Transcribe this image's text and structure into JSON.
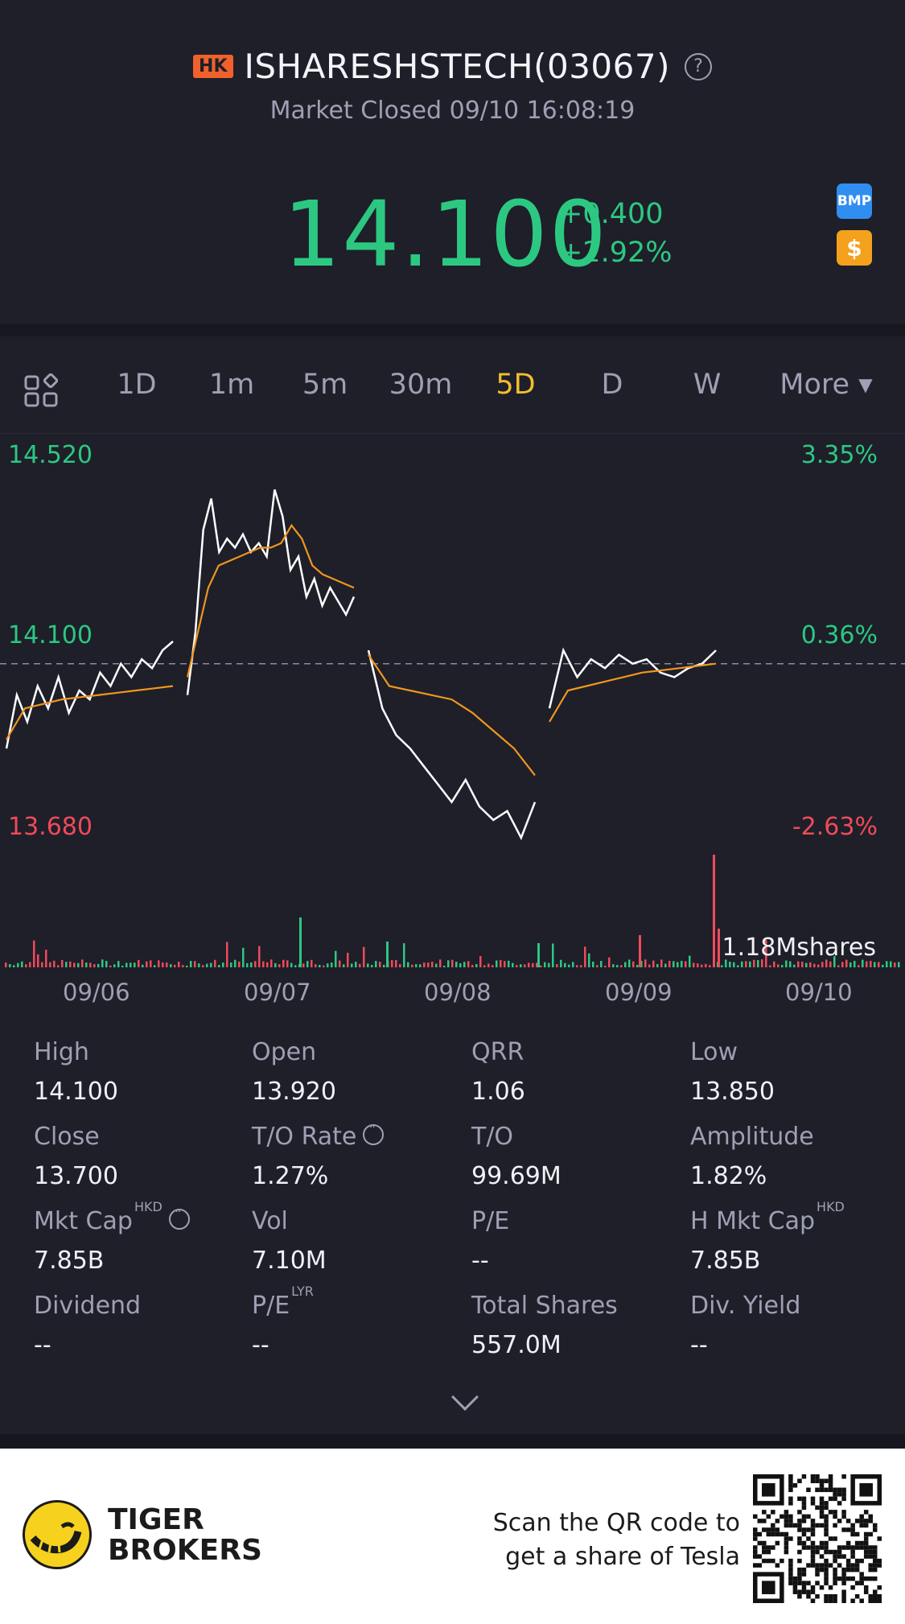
{
  "header": {
    "market_badge": "HK",
    "title": "ISHARESHSTECH(03067)",
    "status": "Market Closed 09/10 16:08:19",
    "price": "14.100",
    "change_abs": "+0.400",
    "change_pct": "+2.92%",
    "icons": [
      "help-icon",
      "bmp-icon",
      "dollar-icon"
    ],
    "bmp_label": "BMP",
    "dollar_label": "$"
  },
  "tabs": {
    "items": [
      "1D",
      "1m",
      "5m",
      "30m",
      "5D",
      "D",
      "W",
      "More ▾"
    ],
    "active": "5D"
  },
  "chart_data": {
    "type": "line",
    "title": "",
    "xlabel": "",
    "ylabel": "",
    "x_ticks": [
      "09/06",
      "09/07",
      "09/08",
      "09/09",
      "09/10"
    ],
    "y_left_ticks": [
      "14.520",
      "14.100",
      "13.680"
    ],
    "y_right_ticks": [
      "3.35%",
      "0.36%",
      "-2.63%"
    ],
    "ylim": [
      13.68,
      14.52
    ],
    "reference_price": 14.05,
    "volume_label": "1.18Mshares",
    "series": [
      {
        "color": "#ffffff",
        "days": [
          [
            13.86,
            13.98,
            13.92,
            14.0,
            13.95,
            14.02,
            13.94,
            13.99,
            13.97,
            14.03,
            14.0,
            14.05,
            14.02,
            14.06,
            14.04,
            14.08,
            14.1
          ],
          [
            13.98,
            14.12,
            14.35,
            14.42,
            14.3,
            14.33,
            14.31,
            14.34,
            14.3,
            14.32,
            14.29,
            14.44,
            14.38,
            14.26,
            14.29,
            14.2,
            14.24,
            14.18,
            14.22,
            14.19,
            14.16,
            14.2
          ],
          [
            14.08,
            13.95,
            13.89,
            13.86,
            13.82,
            13.78,
            13.74,
            13.79,
            13.73,
            13.7,
            13.72,
            13.66,
            13.74
          ],
          [
            13.95,
            14.08,
            14.02,
            14.06,
            14.04,
            14.07,
            14.05,
            14.06,
            14.03,
            14.02,
            14.04,
            14.05,
            14.08
          ]
        ]
      },
      {
        "color": "#f0961e",
        "days": [
          [
            13.88,
            13.95,
            13.96,
            13.97,
            13.975,
            13.98,
            13.985,
            13.99,
            13.995,
            14.0
          ],
          [
            14.02,
            14.12,
            14.22,
            14.27,
            14.28,
            14.29,
            14.3,
            14.31,
            14.31,
            14.32,
            14.36,
            14.33,
            14.27,
            14.25,
            14.24,
            14.23,
            14.22
          ],
          [
            14.07,
            14.0,
            13.99,
            13.98,
            13.97,
            13.94,
            13.9,
            13.86,
            13.8
          ],
          [
            13.92,
            13.99,
            14.0,
            14.01,
            14.02,
            14.03,
            14.035,
            14.04,
            14.045,
            14.05
          ]
        ]
      }
    ]
  },
  "stats": [
    {
      "label": "High",
      "value": "14.100"
    },
    {
      "label": "Open",
      "value": "13.920"
    },
    {
      "label": "QRR",
      "value": "1.06"
    },
    {
      "label": "Low",
      "value": "13.850"
    },
    {
      "label": "Close",
      "value": "13.700"
    },
    {
      "label": "T/O Rate",
      "value": "1.27%",
      "info": true
    },
    {
      "label": "T/O",
      "value": "99.69M"
    },
    {
      "label": "Amplitude",
      "value": "1.82%"
    },
    {
      "label": "Mkt Cap",
      "sup": "HKD",
      "value": "7.85B",
      "info": true
    },
    {
      "label": "Vol",
      "value": "7.10M"
    },
    {
      "label": "P/E",
      "value": "--"
    },
    {
      "label": "H Mkt Cap",
      "sup": "HKD",
      "value": "7.85B"
    },
    {
      "label": "Dividend",
      "value": "--"
    },
    {
      "label": "P/E",
      "sup": "LYR",
      "value": "--"
    },
    {
      "label": "Total Shares",
      "value": "557.0M"
    },
    {
      "label": "Div. Yield",
      "value": "--"
    }
  ],
  "footer": {
    "brand_line1": "TIGER",
    "brand_line2": "BROKERS",
    "qr_line1": "Scan the QR code to",
    "qr_line2": "get a share of Tesla"
  }
}
